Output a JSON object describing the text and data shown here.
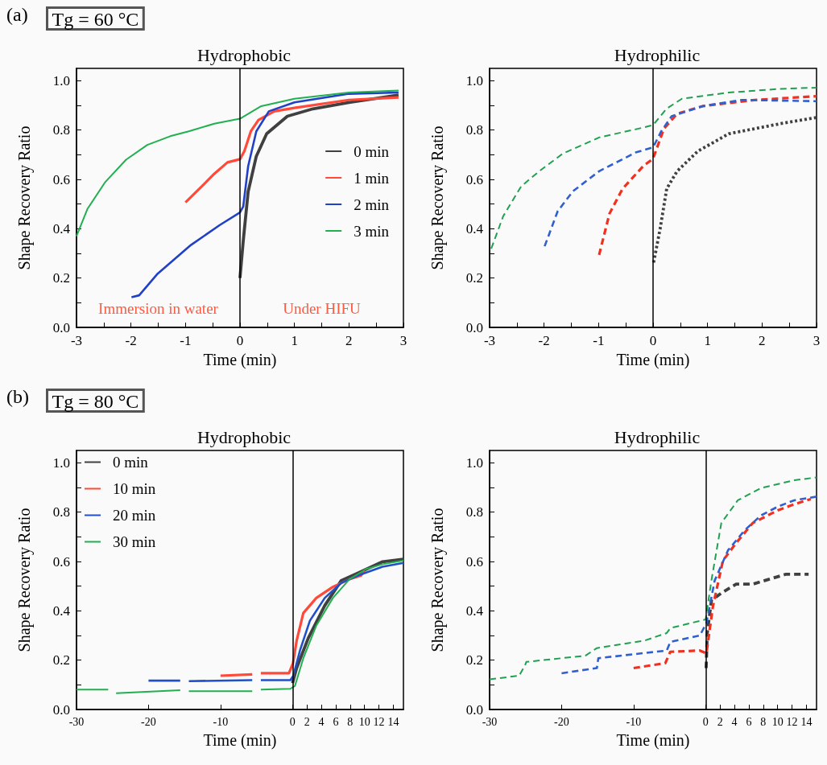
{
  "chart_data": [
    {
      "type": "line",
      "title": "Hydrophobic",
      "xlabel": "Time (min)",
      "ylabel": "Shape Recovery Ratio",
      "annotations": [
        "(a)",
        "Tg = 60 °C",
        "Immersion in water",
        "Under HIFU"
      ],
      "xlim": [
        -3,
        3
      ],
      "xticks": [
        -3,
        {
          "value": -2.5,
          "label": null
        },
        -2,
        {
          "value": -1.5,
          "label": null
        },
        -1,
        {
          "value": -0.5,
          "label": null
        },
        0,
        {
          "value": 0.5,
          "label": null
        },
        1,
        {
          "value": 1.5,
          "label": null
        },
        2,
        {
          "value": 2.5,
          "label": null
        },
        3
      ],
      "ylim": [
        0,
        1.05
      ],
      "yticks": [
        {
          "value": 0,
          "label": "0.0"
        },
        {
          "value": 0.1,
          "label": null
        },
        0.2,
        {
          "value": 0.3,
          "label": null
        },
        0.4,
        {
          "value": 0.5,
          "label": null
        },
        0.6,
        {
          "value": 0.7,
          "label": null
        },
        0.8,
        {
          "value": 0.9,
          "label": null
        },
        {
          "value": 1,
          "label": "1.0"
        }
      ],
      "grid": false,
      "legend": "right",
      "line_style": "solid",
      "marker": "none",
      "ref_lines": [
        {
          "axis": "x",
          "value": 0,
          "color": "#000000"
        }
      ],
      "series": [
        {
          "name": "0 min",
          "color": "#404040",
          "x": [
            0,
            0.06,
            0.15,
            0.3,
            0.49,
            0.87,
            1.34,
            2,
            2.91
          ],
          "values": [
            0.2,
            0.35,
            0.55,
            0.694,
            0.785,
            0.856,
            0.886,
            0.912,
            0.942
          ]
        },
        {
          "name": "1 min",
          "color": "#ff4a3a",
          "x": [
            -1.0,
            -0.7,
            -0.47,
            -0.23,
            0,
            0.08,
            0.2,
            0.34,
            0.63,
            1.0,
            2,
            2.91
          ],
          "values": [
            0.507,
            0.572,
            0.623,
            0.669,
            0.682,
            0.714,
            0.795,
            0.841,
            0.876,
            0.89,
            0.922,
            0.932
          ]
        },
        {
          "name": "2 min",
          "color": "#2040c8",
          "x": [
            -1.99,
            -1.85,
            -1.51,
            -0.9,
            -0.37,
            0,
            0.06,
            0.15,
            0.3,
            0.53,
            1.0,
            2,
            2.91
          ],
          "values": [
            0.122,
            0.13,
            0.218,
            0.334,
            0.415,
            0.466,
            0.49,
            0.653,
            0.795,
            0.876,
            0.912,
            0.947,
            0.952
          ]
        },
        {
          "name": "3 min",
          "color": "#20b050",
          "x": [
            -3,
            -2.8,
            -2.47,
            -2.09,
            -1.7,
            -1.28,
            -0.94,
            -0.47,
            0,
            0.39,
            1.0,
            2.0,
            2.91
          ],
          "values": [
            0.37,
            0.48,
            0.59,
            0.68,
            0.74,
            0.775,
            0.795,
            0.826,
            0.846,
            0.897,
            0.927,
            0.952,
            0.96
          ]
        }
      ]
    },
    {
      "type": "line",
      "title": "Hydrophilic",
      "xlabel": "Time (min)",
      "ylabel": "Shape Recovery Ratio",
      "xlim": [
        -3,
        3
      ],
      "xticks": [
        -3,
        {
          "value": -2.5,
          "label": null
        },
        -2,
        {
          "value": -1.5,
          "label": null
        },
        -1,
        {
          "value": -0.5,
          "label": null
        },
        0,
        {
          "value": 0.5,
          "label": null
        },
        1,
        {
          "value": 1.5,
          "label": null
        },
        2,
        {
          "value": 2.5,
          "label": null
        },
        3
      ],
      "ylim": [
        0,
        1.05
      ],
      "yticks": [
        {
          "value": 0,
          "label": "0.0"
        },
        {
          "value": 0.1,
          "label": null
        },
        0.2,
        {
          "value": 0.3,
          "label": null
        },
        0.4,
        {
          "value": 0.5,
          "label": null
        },
        0.6,
        {
          "value": 0.7,
          "label": null
        },
        0.8,
        {
          "value": 0.9,
          "label": null
        },
        {
          "value": 1,
          "label": "1.0"
        }
      ],
      "grid": false,
      "marker": "none",
      "ref_lines": [
        {
          "axis": "x",
          "value": 0,
          "color": "#000000"
        }
      ],
      "series": [
        {
          "color": "#404040",
          "line_style": "dotted",
          "x": [
            0.01,
            0.13,
            0.25,
            0.44,
            0.82,
            1.39,
            2.34,
            3.0
          ],
          "values": [
            0.263,
            0.4,
            0.562,
            0.633,
            0.714,
            0.785,
            0.826,
            0.851
          ]
        },
        {
          "color": "#f03020",
          "line_style": "dashed",
          "x": [
            -0.99,
            -0.8,
            -0.56,
            -0.18,
            0,
            0.2,
            0.44,
            0.91,
            1.87,
            3.0
          ],
          "values": [
            0.294,
            0.461,
            0.562,
            0.654,
            0.684,
            0.806,
            0.866,
            0.897,
            0.922,
            0.937
          ]
        },
        {
          "color": "#3060d0",
          "line_style": "dashed",
          "x": [
            -1.99,
            -1.75,
            -1.47,
            -0.99,
            -0.32,
            0,
            0.15,
            0.34,
            0.91,
            1.63,
            3.0
          ],
          "values": [
            0.329,
            0.471,
            0.552,
            0.633,
            0.709,
            0.73,
            0.795,
            0.856,
            0.897,
            0.922,
            0.917
          ]
        },
        {
          "color": "#20a050",
          "line_style": "dashed",
          "x": [
            -2.97,
            -2.75,
            -2.42,
            -2.09,
            -1.66,
            -0.99,
            -0.28,
            0,
            0.25,
            0.53,
            1.39,
            2.34,
            3.0
          ],
          "values": [
            0.319,
            0.451,
            0.572,
            0.633,
            0.704,
            0.77,
            0.805,
            0.82,
            0.887,
            0.927,
            0.952,
            0.967,
            0.972
          ]
        }
      ]
    },
    {
      "type": "line",
      "title": "Hydrophobic",
      "xlabel": "Time (min)",
      "ylabel": "Shape Recovery Ratio",
      "annotations": [
        "(b)",
        "Tg = 80 °C"
      ],
      "xlim": [
        -30,
        15.4
      ],
      "xticks": [
        -30,
        -20,
        -10,
        0,
        2,
        4,
        6,
        8,
        10,
        12,
        14
      ],
      "ylim": [
        0,
        1.05
      ],
      "yticks": [
        {
          "value": 0,
          "label": "0.0"
        },
        {
          "value": 0.1,
          "label": null
        },
        0.2,
        {
          "value": 0.3,
          "label": null
        },
        0.4,
        {
          "value": 0.5,
          "label": null
        },
        0.6,
        {
          "value": 0.7,
          "label": null
        },
        0.8,
        {
          "value": 0.9,
          "label": null
        },
        {
          "value": 1,
          "label": "1.0"
        }
      ],
      "grid": false,
      "legend": "top left",
      "line_style": "solid",
      "marker": "none",
      "ref_lines": [
        {
          "axis": "x",
          "value": 0,
          "color": "#000000"
        }
      ],
      "series": [
        {
          "name": "0 min",
          "color": "#404040",
          "x": [
            0,
            0.57,
            2.18,
            4.47,
            6.77,
            9.06,
            12.5,
            15.4
          ],
          "values": [
            0.107,
            0.168,
            0.289,
            0.421,
            0.523,
            0.553,
            0.599,
            0.609
          ]
        },
        {
          "name": "10 min",
          "color": "#ff4a3a",
          "x": [
            -10,
            -5.6,
            -5,
            -4.4,
            -0.5,
            0.07,
            0.57,
            1.5,
            3.3,
            5.6,
            7.9,
            9.5,
            10
          ],
          "values": [
            0.137,
            0.142,
            null,
            0.147,
            0.147,
            0.188,
            0.279,
            0.391,
            0.452,
            0.497,
            0.528,
            0.543,
            0.563
          ]
        },
        {
          "name": "20 min",
          "color": "#2050c8",
          "x": [
            -20,
            -15.6,
            -15,
            -14.4,
            -5.6,
            -5,
            -4.4,
            -0.3,
            0.11,
            1.03,
            2.41,
            4.47,
            6.77,
            9.06,
            12.5,
            15.4
          ],
          "values": [
            0.117,
            0.117,
            null,
            0.115,
            0.119,
            null,
            0.119,
            0.119,
            0.137,
            0.239,
            0.36,
            0.452,
            0.513,
            0.543,
            0.579,
            0.594
          ]
        },
        {
          "name": "30 min",
          "color": "#20b050",
          "x": [
            -30,
            -25.6,
            -25,
            -24.5,
            -15.6,
            -15,
            -14.4,
            -5.6,
            -5,
            -4.4,
            -0.3,
            0.34,
            1.5,
            3.3,
            5.6,
            7.9,
            10.2,
            12.5,
            15.4
          ],
          "values": [
            0.081,
            0.081,
            null,
            0.066,
            0.078,
            null,
            0.074,
            0.074,
            null,
            0.081,
            0.084,
            0.096,
            0.208,
            0.34,
            0.452,
            0.528,
            0.569,
            0.589,
            0.604
          ]
        }
      ]
    },
    {
      "type": "line",
      "title": "Hydrophilic",
      "xlabel": "Time (min)",
      "ylabel": "Shape Recovery Ratio",
      "xlim": [
        -30,
        15.4
      ],
      "xticks": [
        -30,
        -20,
        -10,
        0,
        2,
        4,
        6,
        8,
        10,
        12,
        14
      ],
      "ylim": [
        0,
        1.05
      ],
      "yticks": [
        {
          "value": 0,
          "label": "0.0"
        },
        {
          "value": 0.1,
          "label": null
        },
        0.2,
        {
          "value": 0.3,
          "label": null
        },
        0.4,
        {
          "value": 0.5,
          "label": null
        },
        0.6,
        {
          "value": 0.7,
          "label": null
        },
        0.8,
        {
          "value": 0.9,
          "label": null
        },
        {
          "value": 1,
          "label": "1.0"
        }
      ],
      "grid": false,
      "marker": "none",
      "ref_lines": [
        {
          "axis": "x",
          "value": 0,
          "color": "#000000"
        }
      ],
      "series": [
        {
          "color": "#404040",
          "line_style": "dashed",
          "x": [
            0.07,
            0.23,
            0.8,
            2.18,
            4.24,
            6.54,
            8.8,
            11.1,
            14.3
          ],
          "values": [
            0.168,
            0.31,
            0.442,
            0.472,
            0.508,
            0.508,
            0.528,
            0.548,
            0.548
          ]
        },
        {
          "color": "#f03020",
          "line_style": "dashed",
          "x": [
            -10,
            -5.6,
            -4.9,
            -0.8,
            0.11,
            1.03,
            2.41,
            4.24,
            6.54,
            10,
            12.3,
            14.6
          ],
          "values": [
            0.168,
            0.188,
            0.234,
            0.239,
            0.228,
            0.421,
            0.604,
            0.675,
            0.756,
            0.807,
            0.832,
            0.853
          ]
        },
        {
          "color": "#3060d0",
          "line_style": "dashed",
          "x": [
            -20,
            -15.1,
            -14.9,
            -5.4,
            -4.9,
            -0.8,
            0.11,
            1.26,
            3.1,
            5.4,
            7.7,
            10,
            12.3,
            15.4
          ],
          "values": [
            0.147,
            0.168,
            0.208,
            0.239,
            0.274,
            0.3,
            0.35,
            0.523,
            0.645,
            0.726,
            0.787,
            0.822,
            0.848,
            0.863
          ]
        },
        {
          "color": "#20a050",
          "line_style": "dashed",
          "x": [
            -30,
            -25.9,
            -25.1,
            -24.9,
            -16.7,
            -15.1,
            -8.5,
            -5.4,
            -4.9,
            0,
            0.8,
            2.18,
            4.47,
            7.7,
            12.3,
            15.4
          ],
          "values": [
            0.122,
            0.137,
            0.178,
            0.193,
            0.218,
            0.249,
            0.279,
            0.31,
            0.33,
            0.365,
            0.523,
            0.756,
            0.848,
            0.898,
            0.929,
            0.941
          ]
        }
      ]
    }
  ]
}
